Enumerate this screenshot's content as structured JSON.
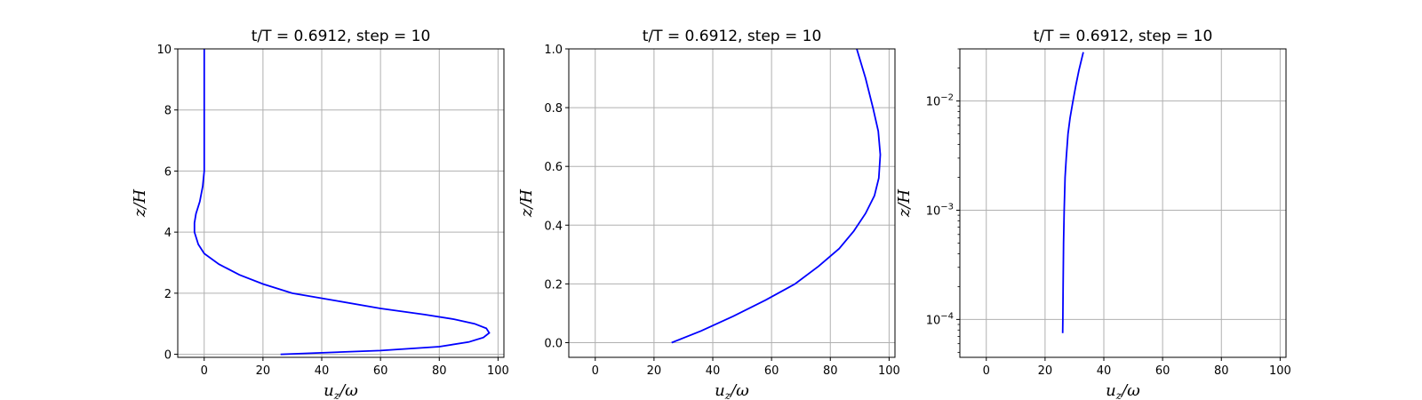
{
  "figure": {
    "background": "#ffffff"
  },
  "chart_data": [
    {
      "type": "line",
      "title": "t/T = 0.6912, step = 10",
      "xlabel": "u_z/ω",
      "ylabel": "z/H",
      "xlim": [
        -9,
        102
      ],
      "ylim": [
        -0.1,
        10
      ],
      "yscale": "linear",
      "xticks": [
        0,
        20,
        40,
        60,
        80,
        100
      ],
      "xtick_labels": [
        "0",
        "20",
        "40",
        "60",
        "80",
        "100"
      ],
      "yticks": [
        0,
        2,
        4,
        6,
        8,
        10
      ],
      "ytick_labels": [
        "0",
        "2",
        "4",
        "6",
        "8",
        "10"
      ],
      "grid": true,
      "series": [
        {
          "color": "#0000ff",
          "x": [
            26,
            60,
            80,
            90,
            95,
            97,
            96,
            92,
            85,
            75,
            60,
            45,
            30,
            20,
            12,
            5,
            0,
            -2,
            -3.3,
            -3.3,
            -2.8,
            -1.5,
            -0.5,
            0,
            0,
            0,
            0,
            0
          ],
          "y": [
            0,
            0.12,
            0.25,
            0.4,
            0.55,
            0.7,
            0.85,
            1.0,
            1.15,
            1.3,
            1.5,
            1.75,
            2.0,
            2.3,
            2.6,
            2.95,
            3.3,
            3.6,
            4.0,
            4.3,
            4.6,
            5.0,
            5.5,
            6.0,
            7.0,
            8.0,
            9.0,
            10.0
          ]
        }
      ]
    },
    {
      "type": "line",
      "title": "t/T = 0.6912, step = 10",
      "xlabel": "u_z/ω",
      "ylabel": "z/H",
      "xlim": [
        -9,
        102
      ],
      "ylim": [
        -0.05,
        1.0
      ],
      "yscale": "linear",
      "xticks": [
        0,
        20,
        40,
        60,
        80,
        100
      ],
      "xtick_labels": [
        "0",
        "20",
        "40",
        "60",
        "80",
        "100"
      ],
      "yticks": [
        0,
        0.2,
        0.4,
        0.6,
        0.8,
        1.0
      ],
      "ytick_labels": [
        "0.0",
        "0.2",
        "0.4",
        "0.6",
        "0.8",
        "1.0"
      ],
      "grid": true,
      "series": [
        {
          "color": "#0000ff",
          "x": [
            26,
            36,
            47,
            58,
            68,
            76,
            83,
            88,
            92,
            95,
            96.5,
            97,
            96.3,
            94.5,
            92,
            89
          ],
          "y": [
            0,
            0.04,
            0.09,
            0.145,
            0.2,
            0.26,
            0.32,
            0.38,
            0.44,
            0.5,
            0.56,
            0.64,
            0.72,
            0.8,
            0.9,
            1.0
          ]
        }
      ]
    },
    {
      "type": "line",
      "title": "t/T = 0.6912, step = 10",
      "xlabel": "u_z/ω",
      "ylabel": "z/H",
      "xlim": [
        -9,
        102
      ],
      "ylim": [
        4.5e-05,
        0.03
      ],
      "yscale": "log",
      "xticks": [
        0,
        20,
        40,
        60,
        80,
        100
      ],
      "xtick_labels": [
        "0",
        "20",
        "40",
        "60",
        "80",
        "100"
      ],
      "yticks": [
        0.0001,
        0.001,
        0.01
      ],
      "ytick_labels": [
        "10",
        "10",
        "10"
      ],
      "ytick_exponents": [
        "−4",
        "−3",
        "−2"
      ],
      "grid": true,
      "series": [
        {
          "color": "#0000ff",
          "x": [
            26,
            26.05,
            26.15,
            26.3,
            26.5,
            26.8,
            27.2,
            27.8,
            28.5,
            29.5,
            30.5,
            31.5,
            33
          ],
          "y": [
            7.5e-05,
            0.0001,
            0.0002,
            0.0005,
            0.001,
            0.002,
            0.003,
            0.005,
            0.007,
            0.01,
            0.014,
            0.019,
            0.028
          ]
        }
      ]
    }
  ]
}
